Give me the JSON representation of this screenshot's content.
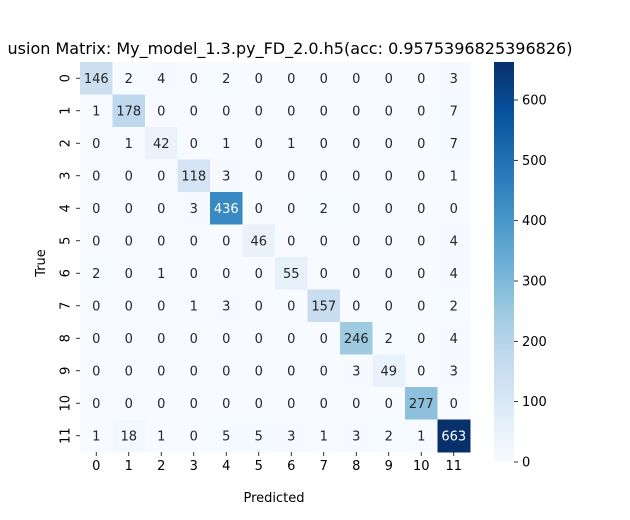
{
  "chart_data": {
    "type": "heatmap",
    "title": "usion Matrix: My_model_1.3.py_FD_2.0.h5(acc: 0.9575396825396826)",
    "xlabel": "Predicted",
    "ylabel": "True",
    "x_categories": [
      "0",
      "1",
      "2",
      "3",
      "4",
      "5",
      "6",
      "7",
      "8",
      "9",
      "10",
      "11"
    ],
    "y_categories": [
      "0",
      "1",
      "2",
      "3",
      "4",
      "5",
      "6",
      "7",
      "8",
      "9",
      "10",
      "11"
    ],
    "values": [
      [
        146,
        2,
        4,
        0,
        2,
        0,
        0,
        0,
        0,
        0,
        0,
        3
      ],
      [
        1,
        178,
        0,
        0,
        0,
        0,
        0,
        0,
        0,
        0,
        0,
        7
      ],
      [
        0,
        1,
        42,
        0,
        1,
        0,
        1,
        0,
        0,
        0,
        0,
        7
      ],
      [
        0,
        0,
        0,
        118,
        3,
        0,
        0,
        0,
        0,
        0,
        0,
        1
      ],
      [
        0,
        0,
        0,
        3,
        436,
        0,
        0,
        2,
        0,
        0,
        0,
        0
      ],
      [
        0,
        0,
        0,
        0,
        0,
        46,
        0,
        0,
        0,
        0,
        0,
        4
      ],
      [
        2,
        0,
        1,
        0,
        0,
        0,
        55,
        0,
        0,
        0,
        0,
        4
      ],
      [
        0,
        0,
        0,
        1,
        3,
        0,
        0,
        157,
        0,
        0,
        0,
        2
      ],
      [
        0,
        0,
        0,
        0,
        0,
        0,
        0,
        0,
        246,
        2,
        0,
        4
      ],
      [
        0,
        0,
        0,
        0,
        0,
        0,
        0,
        0,
        3,
        49,
        0,
        3
      ],
      [
        0,
        0,
        0,
        0,
        0,
        0,
        0,
        0,
        0,
        0,
        277,
        0
      ],
      [
        1,
        18,
        1,
        0,
        5,
        5,
        3,
        1,
        3,
        2,
        1,
        663
      ]
    ],
    "colorbar": {
      "ticks": [
        0,
        100,
        200,
        300,
        400,
        500,
        600
      ],
      "range": [
        0,
        663
      ],
      "colormap": "Blues"
    },
    "grid": false
  }
}
